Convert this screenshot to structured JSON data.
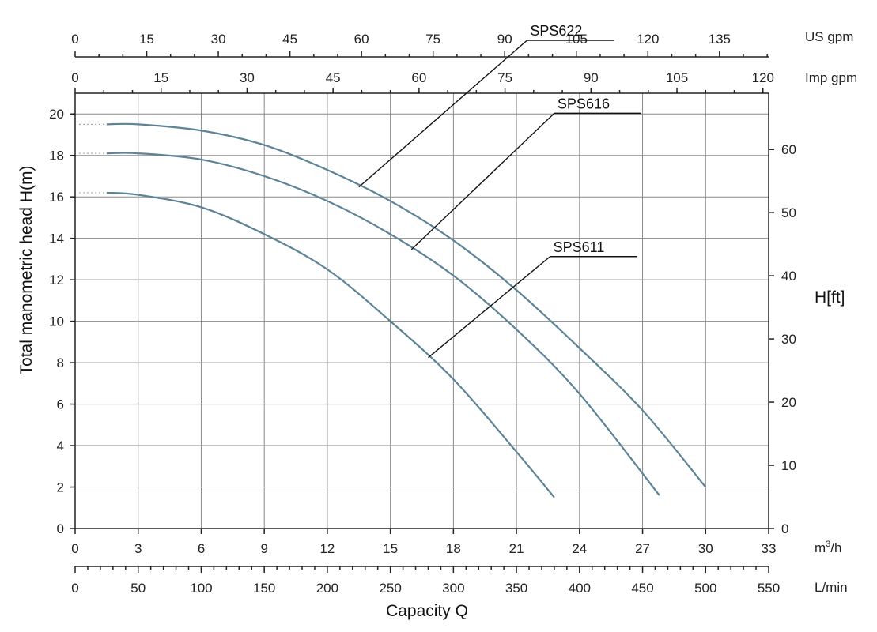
{
  "chart_data": {
    "type": "line",
    "title": "",
    "ylabel": "Total manometric head H(m)",
    "ylabel_right": "H[ft]",
    "xlabel": "Capacity Q",
    "ylim": [
      0,
      21
    ],
    "xlim_m3h": [
      0,
      33
    ],
    "grid": true,
    "axes": {
      "left_ticks": [
        0,
        2,
        4,
        6,
        8,
        10,
        12,
        14,
        16,
        18,
        20
      ],
      "right_ticks": [
        0,
        10,
        20,
        30,
        40,
        50,
        60
      ],
      "right_unit_ft_per_m": 3.28084,
      "m3h_ticks": [
        0,
        3,
        6,
        9,
        12,
        15,
        18,
        21,
        24,
        27,
        30,
        33
      ],
      "m3h_unit": "m³/h",
      "lmin_ticks": [
        0,
        50,
        100,
        150,
        200,
        250,
        300,
        350,
        400,
        450,
        500,
        550
      ],
      "lmin_unit": "L/min",
      "usgpm_ticks": [
        0,
        15,
        30,
        45,
        60,
        75,
        90,
        105,
        120,
        135
      ],
      "usgpm_unit": "US gpm",
      "usgpm_max": 145.3,
      "impgpm_ticks": [
        0,
        15,
        30,
        45,
        60,
        75,
        90,
        105,
        120
      ],
      "impgpm_unit": "Imp gpm",
      "impgpm_max": 121
    },
    "series": [
      {
        "name": "SPS622",
        "x": [
          1.5,
          3,
          6,
          9,
          12,
          15,
          18,
          21,
          24,
          27,
          30
        ],
        "y": [
          19.5,
          19.5,
          19.2,
          18.5,
          17.3,
          15.8,
          13.9,
          11.5,
          8.7,
          5.7,
          2.0
        ]
      },
      {
        "name": "SPS616",
        "x": [
          1.5,
          3,
          6,
          9,
          12,
          15,
          18,
          21,
          24,
          27.8
        ],
        "y": [
          18.1,
          18.1,
          17.8,
          17.0,
          15.8,
          14.2,
          12.2,
          9.6,
          6.5,
          1.6
        ]
      },
      {
        "name": "SPS611",
        "x": [
          1.5,
          3,
          6,
          9,
          12,
          15,
          18,
          21,
          22.8
        ],
        "y": [
          16.2,
          16.1,
          15.5,
          14.2,
          12.5,
          10.0,
          7.2,
          3.7,
          1.5
        ]
      }
    ],
    "annotations": [
      {
        "series": "SPS622",
        "text": "SPS622"
      },
      {
        "series": "SPS616",
        "text": "SPS616"
      },
      {
        "series": "SPS611",
        "text": "SPS611"
      }
    ]
  }
}
